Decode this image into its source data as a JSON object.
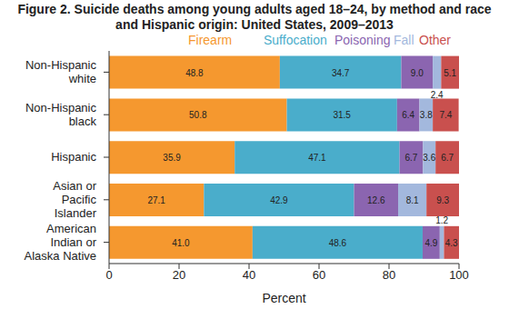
{
  "chart_data": {
    "type": "bar",
    "title": "Figure 2. Suicide deaths among young adults aged 18–24, by method and race and Hispanic origin: United States, 2009–2013",
    "xlabel": "Percent",
    "orientation": "horizontal",
    "stacked": true,
    "data_labels": true,
    "grid": false,
    "legend": "top",
    "categories": [
      "Non-Hispanic white",
      "Non-Hispanic black",
      "Hispanic",
      "Asian or Pacific Islander",
      "American Indian or Alaska Native"
    ],
    "xlim": [
      0,
      100
    ],
    "xticks": [
      0,
      20,
      40,
      60,
      80,
      100
    ],
    "series": [
      {
        "name": "Firearm",
        "color": "#F5982F",
        "values": [
          48.8,
          50.8,
          35.9,
          27.1,
          41.0
        ],
        "value_labels": [
          "48.8",
          "50.8",
          "35.9",
          "27.1",
          "41.0"
        ]
      },
      {
        "name": "Suffocation",
        "color": "#4AADCB",
        "values": [
          34.7,
          31.5,
          47.1,
          42.9,
          48.6
        ],
        "value_labels": [
          "34.7",
          "31.5",
          "47.1",
          "42.9",
          "48.6"
        ]
      },
      {
        "name": "Poisoning",
        "color": "#8B65B0",
        "values": [
          9.0,
          6.4,
          6.7,
          12.6,
          4.9
        ],
        "value_labels": [
          "9.0",
          "6.4",
          "6.7",
          "12.6",
          "4.9"
        ]
      },
      {
        "name": "Fall",
        "color": "#A3B8DD",
        "values": [
          2.4,
          3.8,
          3.6,
          8.1,
          1.2
        ],
        "value_labels": [
          "2.4",
          "3.8",
          "3.6",
          "8.1",
          "1.2"
        ]
      },
      {
        "name": "Other",
        "color": "#C9504E",
        "values": [
          5.1,
          7.4,
          6.7,
          9.3,
          4.3
        ],
        "value_labels": [
          "5.1",
          "7.4",
          "6.7",
          "9.3",
          "4.3"
        ]
      }
    ]
  }
}
